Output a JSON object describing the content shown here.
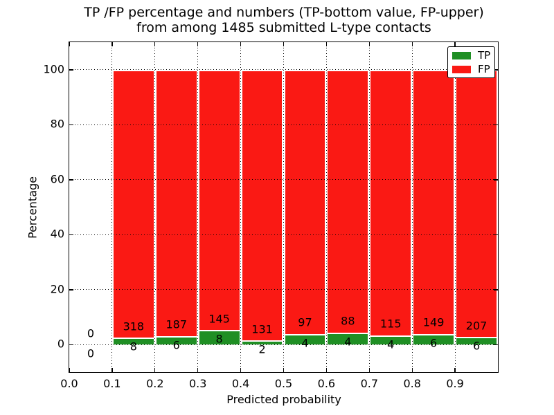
{
  "chart_data": {
    "type": "bar",
    "stacked": true,
    "normalized_to_percent": true,
    "title_line1": "TP /FP percentage and numbers (TP-bottom value, FP-upper)",
    "title_line2": "from among 1485 submitted L-type contacts",
    "xlabel": "Predicted probability",
    "ylabel": "Percentage",
    "total_contacts": 1485,
    "bin_start": [
      0.0,
      0.1,
      0.2,
      0.3,
      0.4,
      0.5,
      0.6,
      0.7,
      0.8,
      0.9
    ],
    "bin_width": 0.1,
    "series": [
      {
        "name": "TP",
        "color": "#1f8f24",
        "counts": [
          0,
          8,
          6,
          8,
          2,
          4,
          4,
          4,
          6,
          6
        ]
      },
      {
        "name": "FP",
        "color": "#fa1914",
        "counts": [
          0,
          318,
          187,
          145,
          131,
          97,
          88,
          115,
          149,
          207
        ]
      }
    ],
    "bar_total_percent": 100,
    "xticks": [
      "0.0",
      "0.1",
      "0.2",
      "0.3",
      "0.4",
      "0.5",
      "0.6",
      "0.7",
      "0.8",
      "0.9"
    ],
    "yticks": [
      0,
      20,
      40,
      60,
      80,
      100
    ],
    "xlim": [
      0.0,
      1.0
    ],
    "ylim": [
      -10,
      110
    ],
    "grid": "dotted",
    "legend": {
      "position": "upper-right",
      "entries": [
        {
          "label": "TP",
          "color": "#1f8f24"
        },
        {
          "label": "FP",
          "color": "#fa1914"
        }
      ]
    }
  }
}
